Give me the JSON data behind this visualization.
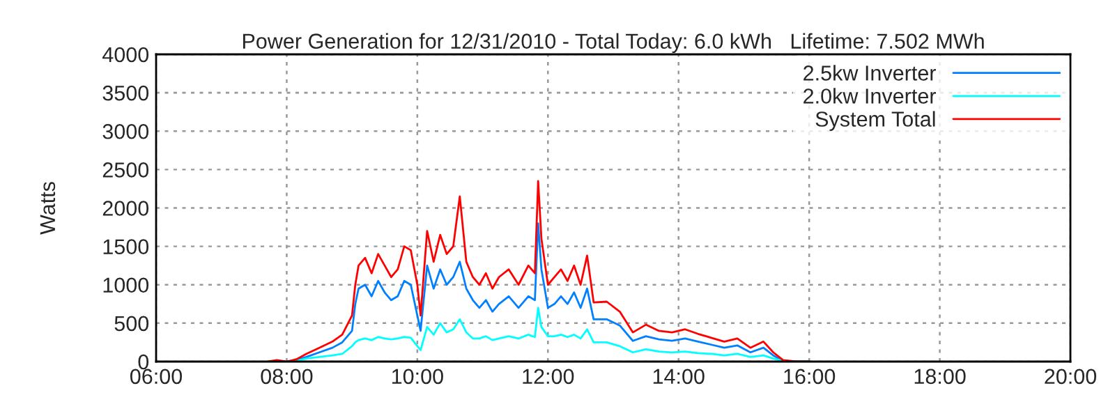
{
  "chart_data": {
    "type": "line",
    "title": "Power Generation for 12/31/2010 - Total Today: 6.0 kWh   Lifetime: 7.502 MWh",
    "ylabel": "Watts",
    "x": [
      7.7,
      7.85,
      8.0,
      8.15,
      8.3,
      8.5,
      8.7,
      8.85,
      9.0,
      9.05,
      9.1,
      9.2,
      9.3,
      9.4,
      9.5,
      9.6,
      9.7,
      9.8,
      9.9,
      10.0,
      10.05,
      10.15,
      10.25,
      10.35,
      10.45,
      10.55,
      10.65,
      10.75,
      10.85,
      10.95,
      11.05,
      11.15,
      11.25,
      11.4,
      11.55,
      11.7,
      11.8,
      11.85,
      11.9,
      12.0,
      12.1,
      12.2,
      12.3,
      12.4,
      12.5,
      12.6,
      12.7,
      12.9,
      13.1,
      13.3,
      13.5,
      13.7,
      13.9,
      14.1,
      14.3,
      14.5,
      14.7,
      14.9,
      15.1,
      15.3,
      15.45,
      15.6,
      15.8,
      16.0
    ],
    "series": [
      {
        "name": "2.5kw Inverter",
        "color": "#0080ff",
        "values": [
          null,
          null,
          0,
          20,
          60,
          120,
          180,
          250,
          400,
          750,
          950,
          1000,
          850,
          1050,
          900,
          800,
          850,
          1050,
          1000,
          600,
          400,
          1250,
          950,
          1200,
          1000,
          1100,
          1300,
          950,
          800,
          700,
          800,
          650,
          750,
          850,
          700,
          850,
          800,
          1800,
          1200,
          700,
          750,
          850,
          750,
          900,
          700,
          950,
          550,
          550,
          470,
          270,
          330,
          290,
          270,
          300,
          260,
          220,
          180,
          210,
          120,
          180,
          80,
          10,
          0,
          0
        ]
      },
      {
        "name": "2.0kw Inverter",
        "color": "#00ffff",
        "values": [
          null,
          null,
          0,
          10,
          40,
          60,
          80,
          100,
          200,
          250,
          280,
          300,
          280,
          320,
          300,
          290,
          300,
          320,
          310,
          200,
          150,
          450,
          350,
          500,
          380,
          420,
          550,
          380,
          300,
          300,
          330,
          280,
          300,
          330,
          300,
          350,
          320,
          700,
          450,
          330,
          330,
          350,
          320,
          350,
          300,
          420,
          250,
          250,
          200,
          120,
          160,
          130,
          120,
          130,
          110,
          100,
          80,
          100,
          60,
          80,
          40,
          10,
          0,
          0
        ]
      },
      {
        "name": "System Total",
        "color": "#ff0000",
        "values": [
          0,
          20,
          0,
          30,
          100,
          180,
          260,
          350,
          600,
          1000,
          1250,
          1350,
          1150,
          1400,
          1250,
          1100,
          1200,
          1500,
          1450,
          1000,
          600,
          1700,
          1300,
          1650,
          1400,
          1500,
          2150,
          1300,
          1100,
          1000,
          1150,
          950,
          1100,
          1200,
          1000,
          1250,
          1150,
          2350,
          1600,
          1000,
          1100,
          1200,
          1050,
          1250,
          1000,
          1380,
          770,
          780,
          650,
          380,
          480,
          400,
          380,
          420,
          360,
          310,
          260,
          300,
          180,
          260,
          120,
          20,
          0,
          0
        ]
      }
    ],
    "xlim": [
      6,
      20
    ],
    "xticks": [
      {
        "value": 6,
        "label": "06:00"
      },
      {
        "value": 8,
        "label": "08:00"
      },
      {
        "value": 10,
        "label": "10:00"
      },
      {
        "value": 12,
        "label": "12:00"
      },
      {
        "value": 14,
        "label": "14:00"
      },
      {
        "value": 16,
        "label": "16:00"
      },
      {
        "value": 18,
        "label": "18:00"
      },
      {
        "value": 20,
        "label": "20:00"
      }
    ],
    "ylim": [
      0,
      4000
    ],
    "yticks": [
      0,
      500,
      1000,
      1500,
      2000,
      2500,
      3000,
      3500,
      4000
    ],
    "grid": true,
    "legend": "top right",
    "line_style": "solid"
  }
}
